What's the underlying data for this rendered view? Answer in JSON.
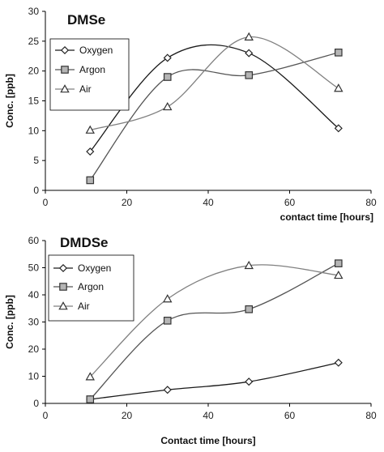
{
  "chart_data": [
    {
      "type": "line",
      "title": "DMSe",
      "xlabel": "contact time [hours]",
      "ylabel": "Conc. [ppb]",
      "xlim": [
        0,
        80
      ],
      "ylim": [
        0,
        30
      ],
      "xticks": [
        "0",
        "20",
        "40",
        "60",
        "80"
      ],
      "yticks": [
        "0",
        "5",
        "10",
        "15",
        "20",
        "25",
        "30"
      ],
      "grid": false,
      "legend": "top-left",
      "smooth": true,
      "series": [
        {
          "name": "Oxygen",
          "marker": "diamond",
          "color": "#1a1a1a",
          "x": [
            11,
            30,
            50,
            72
          ],
          "y": [
            6.5,
            22.2,
            23.0,
            10.4
          ]
        },
        {
          "name": "Argon",
          "marker": "square",
          "color": "#555555",
          "x": [
            11,
            30,
            50,
            72
          ],
          "y": [
            1.7,
            19.0,
            19.3,
            23.1
          ]
        },
        {
          "name": "Air",
          "marker": "triangle",
          "color": "#808080",
          "x": [
            11,
            30,
            50,
            72
          ],
          "y": [
            10.1,
            14.0,
            25.7,
            17.1
          ]
        }
      ]
    },
    {
      "type": "line",
      "title": "DMDSe",
      "xlabel": "Contact time [hours]",
      "ylabel": "Conc. [ppb]",
      "xlim": [
        0,
        80
      ],
      "ylim": [
        0,
        60
      ],
      "xticks": [
        "0",
        "20",
        "40",
        "60",
        "80"
      ],
      "yticks": [
        "0",
        "10",
        "20",
        "30",
        "40",
        "50",
        "60"
      ],
      "grid": false,
      "legend": "top-left",
      "smooth": true,
      "series": [
        {
          "name": "Oxygen",
          "marker": "diamond",
          "color": "#1a1a1a",
          "x": [
            11,
            30,
            50,
            72
          ],
          "y": [
            1.5,
            5.0,
            8.0,
            15.0
          ]
        },
        {
          "name": "Argon",
          "marker": "square",
          "color": "#555555",
          "x": [
            11,
            30,
            50,
            72
          ],
          "y": [
            1.5,
            30.5,
            34.7,
            51.6
          ]
        },
        {
          "name": "Air",
          "marker": "triangle",
          "color": "#808080",
          "x": [
            11,
            30,
            50,
            72
          ],
          "y": [
            9.8,
            38.5,
            50.8,
            47.2
          ]
        }
      ]
    }
  ]
}
